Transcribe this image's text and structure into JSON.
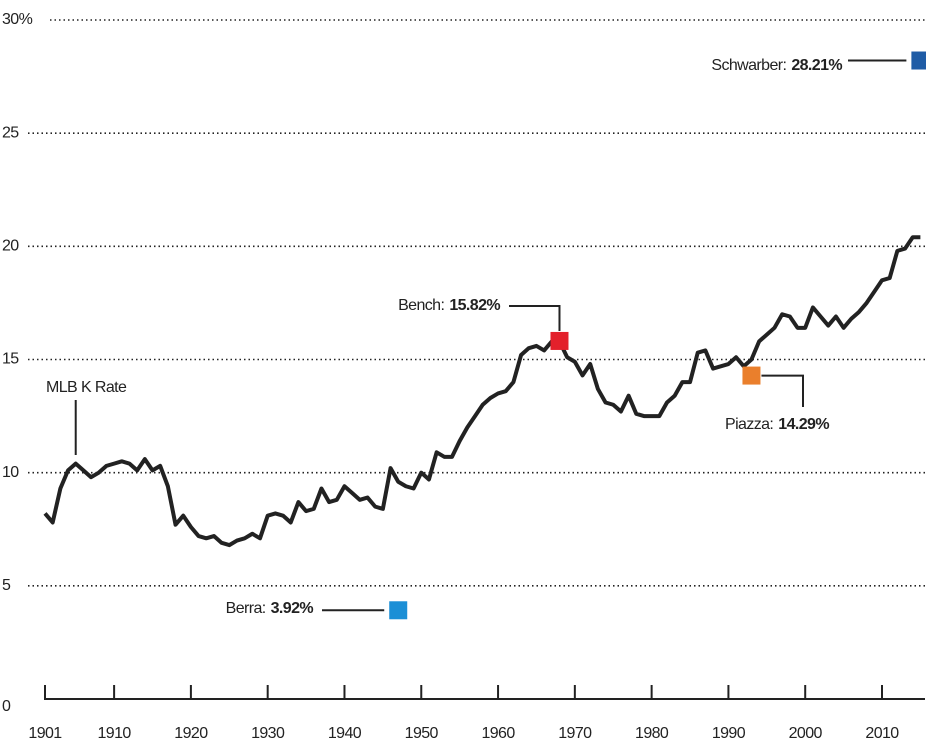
{
  "chart_data": {
    "type": "line",
    "x": [
      1901,
      1902,
      1903,
      1904,
      1905,
      1906,
      1907,
      1908,
      1909,
      1910,
      1911,
      1912,
      1913,
      1914,
      1915,
      1916,
      1917,
      1918,
      1919,
      1920,
      1921,
      1922,
      1923,
      1924,
      1925,
      1926,
      1927,
      1928,
      1929,
      1930,
      1931,
      1932,
      1933,
      1934,
      1935,
      1936,
      1937,
      1938,
      1939,
      1940,
      1941,
      1942,
      1943,
      1944,
      1945,
      1946,
      1947,
      1948,
      1949,
      1950,
      1951,
      1952,
      1953,
      1954,
      1955,
      1956,
      1957,
      1958,
      1959,
      1960,
      1961,
      1962,
      1963,
      1964,
      1965,
      1966,
      1967,
      1968,
      1969,
      1970,
      1971,
      1972,
      1973,
      1974,
      1975,
      1976,
      1977,
      1978,
      1979,
      1980,
      1981,
      1982,
      1983,
      1984,
      1985,
      1986,
      1987,
      1988,
      1989,
      1990,
      1991,
      1992,
      1993,
      1994,
      1995,
      1996,
      1997,
      1998,
      1999,
      2000,
      2001,
      2002,
      2003,
      2004,
      2005,
      2006,
      2007,
      2008,
      2009,
      2010,
      2011,
      2012,
      2013,
      2014,
      2015
    ],
    "series": [
      {
        "name": "MLB K Rate",
        "color": "#222222",
        "values": [
          8.2,
          7.8,
          9.3,
          10.1,
          10.4,
          10.1,
          9.8,
          10.0,
          10.3,
          10.4,
          10.5,
          10.4,
          10.1,
          10.6,
          10.1,
          10.3,
          9.4,
          7.7,
          8.1,
          7.6,
          7.2,
          7.1,
          7.2,
          6.9,
          6.8,
          7.0,
          7.1,
          7.3,
          7.1,
          8.1,
          8.2,
          8.1,
          7.8,
          8.7,
          8.3,
          8.4,
          9.3,
          8.7,
          8.8,
          9.4,
          9.1,
          8.8,
          8.9,
          8.5,
          8.4,
          10.2,
          9.6,
          9.4,
          9.3,
          10.0,
          9.7,
          10.9,
          10.7,
          10.7,
          11.4,
          12.0,
          12.5,
          13.0,
          13.3,
          13.5,
          13.6,
          14.0,
          15.2,
          15.5,
          15.6,
          15.4,
          15.8,
          15.8,
          15.1,
          14.9,
          14.3,
          14.8,
          13.7,
          13.1,
          13.0,
          12.7,
          13.4,
          12.6,
          12.5,
          12.5,
          12.5,
          13.1,
          13.4,
          14.0,
          14.0,
          15.3,
          15.4,
          14.6,
          14.7,
          14.8,
          15.1,
          14.7,
          15.0,
          15.8,
          16.1,
          16.4,
          17.0,
          16.9,
          16.4,
          16.4,
          17.3,
          16.9,
          16.5,
          16.9,
          16.4,
          16.8,
          17.1,
          17.5,
          18.0,
          18.5,
          18.6,
          19.8,
          19.9,
          20.4,
          20.4
        ]
      }
    ],
    "points": [
      {
        "label": "Schwarber:",
        "x": 2015,
        "value": 28.21,
        "value_label": "28.21%",
        "color": "#1f5ca6"
      },
      {
        "label": "Bench:",
        "x": 1968,
        "value": 15.82,
        "value_label": "15.82%",
        "color": "#e3202b"
      },
      {
        "label": "Piazza:",
        "x": 1993,
        "value": 14.29,
        "value_label": "14.29%",
        "color": "#ea7f2c"
      },
      {
        "label": "Berra:",
        "x": 1947,
        "value": 3.92,
        "value_label": "3.92%",
        "color": "#1b8fd6"
      }
    ],
    "xlim": [
      1901,
      2015.6
    ],
    "xticks": [
      1901,
      1910,
      1920,
      1930,
      1940,
      1950,
      1960,
      1970,
      1980,
      1990,
      2000,
      2010
    ],
    "ylim": [
      0,
      30
    ],
    "yticks": [
      0,
      5,
      10,
      15,
      20,
      25,
      {
        "value": 30,
        "label": "30%"
      }
    ],
    "grid": true
  }
}
